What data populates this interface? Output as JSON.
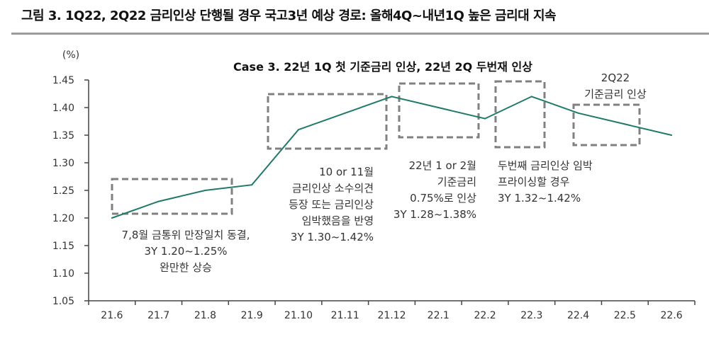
{
  "title": "그림 3. 1Q22, 2Q22 금리인상 단행될 경우 국고3년 예상 경로: 올해4Q~내년1Q 높은 금리대 지속",
  "chart_data": {
    "type": "line",
    "title": "Case 3. 22년 1Q 첫 기준금리 인상, 22년 2Q 두번재 인상",
    "ylabel": "(%)",
    "xlabel": "",
    "categories": [
      "21.6",
      "21.7",
      "21.8",
      "21.9",
      "21.10",
      "21.11",
      "21.12",
      "22.1",
      "22.2",
      "22.3",
      "22.4",
      "22.5",
      "22.6"
    ],
    "values": [
      1.2,
      1.23,
      1.25,
      1.26,
      1.36,
      1.39,
      1.42,
      1.4,
      1.38,
      1.42,
      1.39,
      1.37,
      1.35
    ],
    "ylim": [
      1.05,
      1.45
    ],
    "yticks": [
      "1.45",
      "1.40",
      "1.35",
      "1.30",
      "1.25",
      "1.20",
      "1.15",
      "1.10",
      "1.05"
    ],
    "grid": false,
    "line_color": "#1f7a6a",
    "annotations": [
      {
        "lines": [
          "7,8월 금통위 만장일치 동결,",
          "3Y 1.20~1.25%",
          "완만한 상승"
        ]
      },
      {
        "lines": [
          "10 or 11월",
          "금리인상 소수의견",
          "등장 또는 금리인상",
          "임박했음을 반영",
          "3Y 1.30~1.42%"
        ]
      },
      {
        "lines": [
          "22년 1 or 2월",
          "기준금리",
          "0.75%로 인상",
          "3Y 1.28~1.38%"
        ]
      },
      {
        "lines": [
          "두번째 금리인상 임박",
          "프라이싱할 경우",
          "3Y 1.32~1.42%"
        ]
      },
      {
        "lines": [
          "2Q22",
          "기준금리 인상"
        ]
      }
    ]
  }
}
